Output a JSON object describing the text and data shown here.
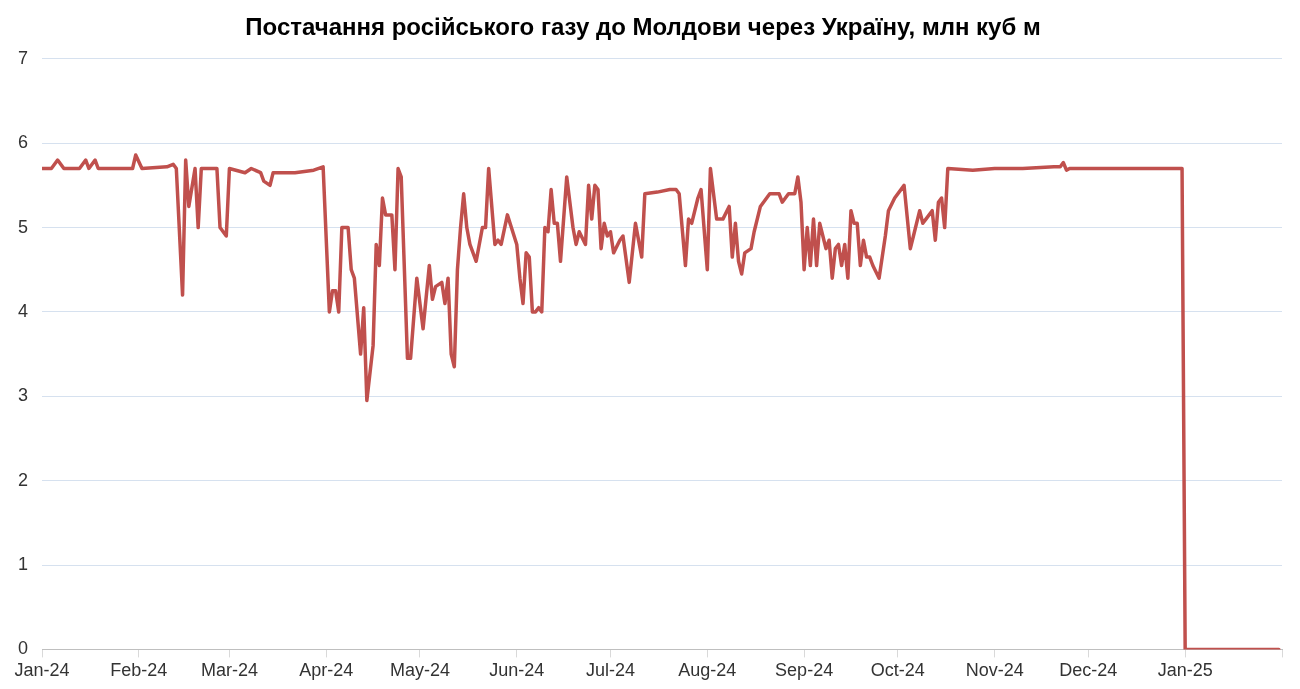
{
  "chart_data": {
    "type": "line",
    "title": "Постачання російського газу до Молдови через Україну, млн куб м",
    "xlim": [
      "2024-01-01",
      "2025-02-01"
    ],
    "xticks": [
      {
        "value": "2024-01-01",
        "label": "Jan-24"
      },
      {
        "value": "2024-02-01",
        "label": "Feb-24"
      },
      {
        "value": "2024-03-01",
        "label": "Mar-24"
      },
      {
        "value": "2024-04-01",
        "label": "Apr-24"
      },
      {
        "value": "2024-05-01",
        "label": "May-24"
      },
      {
        "value": "2024-06-01",
        "label": "Jun-24"
      },
      {
        "value": "2024-07-01",
        "label": "Jul-24"
      },
      {
        "value": "2024-08-01",
        "label": "Aug-24"
      },
      {
        "value": "2024-09-01",
        "label": "Sep-24"
      },
      {
        "value": "2024-10-01",
        "label": "Oct-24"
      },
      {
        "value": "2024-11-01",
        "label": "Nov-24"
      },
      {
        "value": "2024-12-01",
        "label": "Dec-24"
      },
      {
        "value": "2025-01-01",
        "label": "Jan-25"
      },
      {
        "value": "2025-02-01",
        "label": null
      }
    ],
    "ylim": [
      0,
      7
    ],
    "yticks": [
      0,
      1,
      2,
      3,
      4,
      5,
      6,
      7
    ],
    "grid": "y",
    "legend": false,
    "marker": "none",
    "line_style": "solid",
    "series": [
      {
        "color": "#c0504d",
        "x": [
          "2024-01-01",
          "2024-01-04",
          "2024-01-06",
          "2024-01-08",
          "2024-01-13",
          "2024-01-15",
          "2024-01-16",
          "2024-01-18",
          "2024-01-19",
          "2024-01-30",
          "2024-01-31",
          "2024-02-02",
          "2024-02-10",
          "2024-02-12",
          "2024-02-13",
          "2024-02-15",
          "2024-02-16",
          "2024-02-17",
          "2024-02-19",
          "2024-02-20",
          "2024-02-21",
          "2024-02-26",
          "2024-02-27",
          "2024-02-29",
          "2024-03-01",
          "2024-03-06",
          "2024-03-08",
          "2024-03-11",
          "2024-03-12",
          "2024-03-14",
          "2024-03-15",
          "2024-03-22",
          "2024-03-28",
          "2024-03-31",
          "2024-04-02",
          "2024-04-03",
          "2024-04-04",
          "2024-04-05",
          "2024-04-06",
          "2024-04-08",
          "2024-04-09",
          "2024-04-10",
          "2024-04-12",
          "2024-04-13",
          "2024-04-14",
          "2024-04-16",
          "2024-04-17",
          "2024-04-18",
          "2024-04-19",
          "2024-04-20",
          "2024-04-22",
          "2024-04-23",
          "2024-04-24",
          "2024-04-25",
          "2024-04-27",
          "2024-04-28",
          "2024-04-30",
          "2024-05-02",
          "2024-05-04",
          "2024-05-05",
          "2024-05-06",
          "2024-05-08",
          "2024-05-09",
          "2024-05-10",
          "2024-05-11",
          "2024-05-12",
          "2024-05-13",
          "2024-05-14",
          "2024-05-15",
          "2024-05-16",
          "2024-05-17",
          "2024-05-19",
          "2024-05-21",
          "2024-05-22",
          "2024-05-23",
          "2024-05-25",
          "2024-05-26",
          "2024-05-27",
          "2024-05-29",
          "2024-06-01",
          "2024-06-02",
          "2024-06-03",
          "2024-06-04",
          "2024-06-05",
          "2024-06-06",
          "2024-06-07",
          "2024-06-08",
          "2024-06-09",
          "2024-06-10",
          "2024-06-11",
          "2024-06-12",
          "2024-06-13",
          "2024-06-14",
          "2024-06-15",
          "2024-06-17",
          "2024-06-19",
          "2024-06-20",
          "2024-06-21",
          "2024-06-23",
          "2024-06-24",
          "2024-06-25",
          "2024-06-26",
          "2024-06-27",
          "2024-06-28",
          "2024-06-29",
          "2024-06-30",
          "2024-07-01",
          "2024-07-02",
          "2024-07-04",
          "2024-07-05",
          "2024-07-07",
          "2024-07-09",
          "2024-07-11",
          "2024-07-12",
          "2024-07-16",
          "2024-07-20",
          "2024-07-22",
          "2024-07-23",
          "2024-07-25",
          "2024-07-26",
          "2024-07-27",
          "2024-07-29",
          "2024-07-30",
          "2024-08-01",
          "2024-08-02",
          "2024-08-04",
          "2024-08-06",
          "2024-08-08",
          "2024-08-09",
          "2024-08-10",
          "2024-08-11",
          "2024-08-12",
          "2024-08-13",
          "2024-08-15",
          "2024-08-16",
          "2024-08-18",
          "2024-08-19",
          "2024-08-21",
          "2024-08-24",
          "2024-08-25",
          "2024-08-27",
          "2024-08-29",
          "2024-08-30",
          "2024-08-31",
          "2024-09-01",
          "2024-09-02",
          "2024-09-03",
          "2024-09-04",
          "2024-09-05",
          "2024-09-06",
          "2024-09-07",
          "2024-09-08",
          "2024-09-09",
          "2024-09-10",
          "2024-09-11",
          "2024-09-12",
          "2024-09-13",
          "2024-09-14",
          "2024-09-15",
          "2024-09-16",
          "2024-09-17",
          "2024-09-18",
          "2024-09-19",
          "2024-09-20",
          "2024-09-21",
          "2024-09-22",
          "2024-09-23",
          "2024-09-25",
          "2024-09-27",
          "2024-09-28",
          "2024-09-30",
          "2024-10-03",
          "2024-10-05",
          "2024-10-06",
          "2024-10-08",
          "2024-10-09",
          "2024-10-10",
          "2024-10-12",
          "2024-10-13",
          "2024-10-14",
          "2024-10-15",
          "2024-10-16",
          "2024-10-17",
          "2024-10-25",
          "2024-11-01",
          "2024-11-10",
          "2024-11-20",
          "2024-11-22",
          "2024-11-23",
          "2024-11-24",
          "2024-11-25",
          "2024-12-10",
          "2024-12-31",
          "2025-01-01",
          "2025-01-31"
        ],
        "values": [
          5.7,
          5.7,
          5.8,
          5.7,
          5.7,
          5.8,
          5.7,
          5.8,
          5.7,
          5.7,
          5.86,
          5.7,
          5.72,
          5.75,
          5.7,
          4.2,
          5.8,
          5.25,
          5.7,
          5.0,
          5.7,
          5.7,
          5.0,
          4.9,
          5.7,
          5.65,
          5.7,
          5.65,
          5.55,
          5.5,
          5.65,
          5.65,
          5.68,
          5.72,
          4.0,
          4.25,
          4.25,
          4.0,
          5.0,
          5.0,
          4.5,
          4.4,
          3.5,
          4.05,
          2.95,
          3.6,
          4.8,
          4.55,
          5.35,
          5.15,
          5.15,
          4.5,
          5.7,
          5.6,
          3.45,
          3.45,
          4.4,
          3.8,
          4.55,
          4.15,
          4.3,
          4.35,
          4.1,
          4.4,
          3.5,
          3.35,
          4.5,
          5.0,
          5.4,
          5.0,
          4.8,
          4.6,
          5.0,
          5.0,
          5.7,
          4.8,
          4.85,
          4.8,
          5.15,
          4.8,
          4.4,
          4.1,
          4.7,
          4.65,
          4.0,
          4.0,
          4.05,
          4.0,
          5.0,
          4.95,
          5.45,
          5.05,
          5.05,
          4.6,
          5.6,
          5.0,
          4.8,
          4.95,
          4.8,
          5.5,
          5.1,
          5.5,
          5.45,
          4.75,
          5.05,
          4.9,
          4.95,
          4.7,
          4.85,
          4.9,
          4.35,
          5.05,
          4.65,
          5.4,
          5.42,
          5.45,
          5.45,
          5.4,
          4.55,
          5.1,
          5.05,
          5.35,
          5.45,
          4.5,
          5.7,
          5.1,
          5.1,
          5.25,
          4.65,
          5.05,
          4.6,
          4.45,
          4.7,
          4.75,
          4.95,
          5.25,
          5.3,
          5.4,
          5.4,
          5.3,
          5.4,
          5.4,
          5.6,
          5.3,
          4.5,
          5.0,
          4.55,
          5.1,
          4.55,
          5.05,
          4.9,
          4.75,
          4.85,
          4.4,
          4.75,
          4.8,
          4.55,
          4.8,
          4.4,
          5.2,
          5.05,
          5.05,
          4.55,
          4.85,
          4.65,
          4.65,
          4.55,
          4.4,
          4.9,
          5.2,
          5.35,
          5.5,
          4.75,
          4.9,
          5.2,
          5.05,
          5.1,
          5.2,
          4.85,
          5.3,
          5.35,
          5.0,
          5.7,
          5.68,
          5.7,
          5.7,
          5.72,
          5.72,
          5.77,
          5.68,
          5.7,
          5.7,
          5.7,
          0,
          0
        ]
      }
    ]
  }
}
